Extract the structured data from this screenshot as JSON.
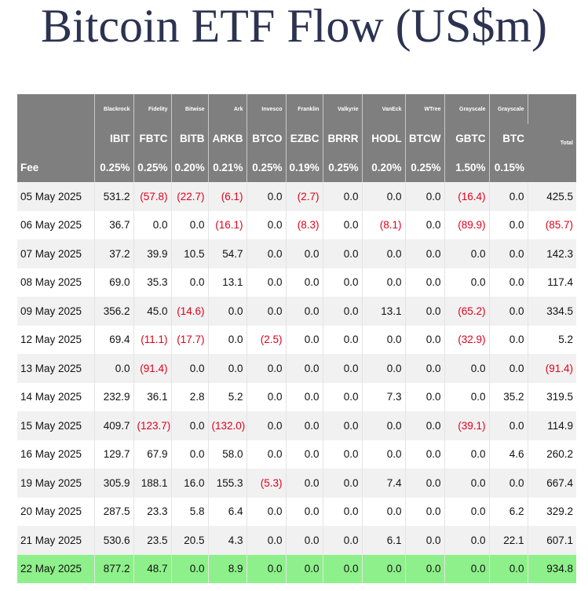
{
  "title": "Bitcoin ETF Flow (US$m)",
  "colors": {
    "header_bg": "#7f7f7f",
    "negative": "#e0001b",
    "highlight_row": "#8ef08a",
    "stripe": "#f1f1f1"
  },
  "table": {
    "fee_label": "Fee",
    "total_label": "Total",
    "columns": [
      {
        "issuer": "Blackrock",
        "ticker": "IBIT",
        "fee": "0.25%"
      },
      {
        "issuer": "Fidelity",
        "ticker": "FBTC",
        "fee": "0.25%"
      },
      {
        "issuer": "Bitwise",
        "ticker": "BITB",
        "fee": "0.20%"
      },
      {
        "issuer": "Ark",
        "ticker": "ARKB",
        "fee": "0.21%"
      },
      {
        "issuer": "Invesco",
        "ticker": "BTCO",
        "fee": "0.25%"
      },
      {
        "issuer": "Franklin",
        "ticker": "EZBC",
        "fee": "0.19%"
      },
      {
        "issuer": "Valkyrie",
        "ticker": "BRRR",
        "fee": "0.25%"
      },
      {
        "issuer": "VanEck",
        "ticker": "HODL",
        "fee": "0.20%"
      },
      {
        "issuer": "WTree",
        "ticker": "BTCW",
        "fee": "0.25%"
      },
      {
        "issuer": "Grayscale",
        "ticker": "GBTC",
        "fee": "1.50%"
      },
      {
        "issuer": "Grayscale",
        "ticker": "BTC",
        "fee": "0.15%"
      }
    ],
    "rows": [
      {
        "date": "05 May 2025",
        "values": [
          "531.2",
          "(57.8)",
          "(22.7)",
          "(6.1)",
          "0.0",
          "(2.7)",
          "0.0",
          "0.0",
          "0.0",
          "(16.4)",
          "0.0"
        ],
        "total": "425.5"
      },
      {
        "date": "06 May 2025",
        "values": [
          "36.7",
          "0.0",
          "0.0",
          "(16.1)",
          "0.0",
          "(8.3)",
          "0.0",
          "(8.1)",
          "0.0",
          "(89.9)",
          "0.0"
        ],
        "total": "(85.7)"
      },
      {
        "date": "07 May 2025",
        "values": [
          "37.2",
          "39.9",
          "10.5",
          "54.7",
          "0.0",
          "0.0",
          "0.0",
          "0.0",
          "0.0",
          "0.0",
          "0.0"
        ],
        "total": "142.3"
      },
      {
        "date": "08 May 2025",
        "values": [
          "69.0",
          "35.3",
          "0.0",
          "13.1",
          "0.0",
          "0.0",
          "0.0",
          "0.0",
          "0.0",
          "0.0",
          "0.0"
        ],
        "total": "117.4"
      },
      {
        "date": "09 May 2025",
        "values": [
          "356.2",
          "45.0",
          "(14.6)",
          "0.0",
          "0.0",
          "0.0",
          "0.0",
          "13.1",
          "0.0",
          "(65.2)",
          "0.0"
        ],
        "total": "334.5"
      },
      {
        "date": "12 May 2025",
        "values": [
          "69.4",
          "(11.1)",
          "(17.7)",
          "0.0",
          "(2.5)",
          "0.0",
          "0.0",
          "0.0",
          "0.0",
          "(32.9)",
          "0.0"
        ],
        "total": "5.2"
      },
      {
        "date": "13 May 2025",
        "values": [
          "0.0",
          "(91.4)",
          "0.0",
          "0.0",
          "0.0",
          "0.0",
          "0.0",
          "0.0",
          "0.0",
          "0.0",
          "0.0"
        ],
        "total": "(91.4)"
      },
      {
        "date": "14 May 2025",
        "values": [
          "232.9",
          "36.1",
          "2.8",
          "5.2",
          "0.0",
          "0.0",
          "0.0",
          "7.3",
          "0.0",
          "0.0",
          "35.2"
        ],
        "total": "319.5"
      },
      {
        "date": "15 May 2025",
        "values": [
          "409.7",
          "(123.7)",
          "0.0",
          "(132.0)",
          "0.0",
          "0.0",
          "0.0",
          "0.0",
          "0.0",
          "(39.1)",
          "0.0"
        ],
        "total": "114.9"
      },
      {
        "date": "16 May 2025",
        "values": [
          "129.7",
          "67.9",
          "0.0",
          "58.0",
          "0.0",
          "0.0",
          "0.0",
          "0.0",
          "0.0",
          "0.0",
          "4.6"
        ],
        "total": "260.2"
      },
      {
        "date": "19 May 2025",
        "values": [
          "305.9",
          "188.1",
          "16.0",
          "155.3",
          "(5.3)",
          "0.0",
          "0.0",
          "7.4",
          "0.0",
          "0.0",
          "0.0"
        ],
        "total": "667.4"
      },
      {
        "date": "20 May 2025",
        "values": [
          "287.5",
          "23.3",
          "5.8",
          "6.4",
          "0.0",
          "0.0",
          "0.0",
          "0.0",
          "0.0",
          "0.0",
          "6.2"
        ],
        "total": "329.2"
      },
      {
        "date": "21 May 2025",
        "values": [
          "530.6",
          "23.5",
          "20.5",
          "4.3",
          "0.0",
          "0.0",
          "0.0",
          "6.1",
          "0.0",
          "0.0",
          "22.1"
        ],
        "total": "607.1"
      },
      {
        "date": "22 May 2025",
        "values": [
          "877.2",
          "48.7",
          "0.0",
          "8.9",
          "0.0",
          "0.0",
          "0.0",
          "0.0",
          "0.0",
          "0.0",
          "0.0"
        ],
        "total": "934.8",
        "highlight": true
      }
    ]
  }
}
